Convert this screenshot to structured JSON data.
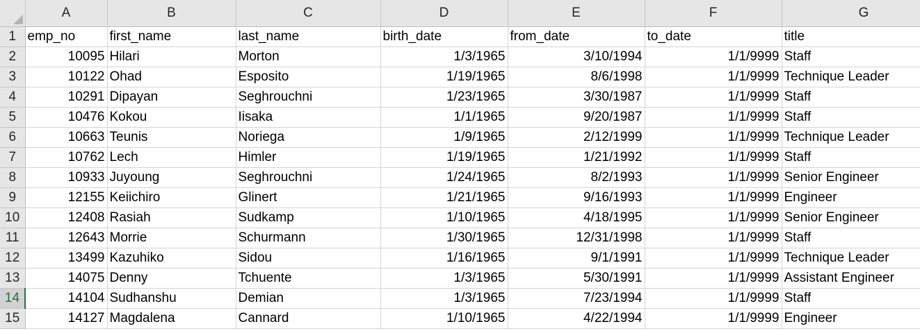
{
  "columns": [
    "A",
    "B",
    "C",
    "D",
    "E",
    "F",
    "G"
  ],
  "header_row": {
    "row_number": "1",
    "cells": [
      "emp_no",
      "first_name",
      "last_name",
      "birth_date",
      "from_date",
      "to_date",
      "title"
    ]
  },
  "rows": [
    {
      "row_number": "2",
      "emp_no": "10095",
      "first_name": "Hilari",
      "last_name": "Morton",
      "birth_date": "1/3/1965",
      "from_date": "3/10/1994",
      "to_date": "1/1/9999",
      "title": "Staff"
    },
    {
      "row_number": "3",
      "emp_no": "10122",
      "first_name": "Ohad",
      "last_name": "Esposito",
      "birth_date": "1/19/1965",
      "from_date": "8/6/1998",
      "to_date": "1/1/9999",
      "title": "Technique Leader"
    },
    {
      "row_number": "4",
      "emp_no": "10291",
      "first_name": "Dipayan",
      "last_name": "Seghrouchni",
      "birth_date": "1/23/1965",
      "from_date": "3/30/1987",
      "to_date": "1/1/9999",
      "title": "Staff"
    },
    {
      "row_number": "5",
      "emp_no": "10476",
      "first_name": "Kokou",
      "last_name": "Iisaka",
      "birth_date": "1/1/1965",
      "from_date": "9/20/1987",
      "to_date": "1/1/9999",
      "title": "Staff"
    },
    {
      "row_number": "6",
      "emp_no": "10663",
      "first_name": "Teunis",
      "last_name": "Noriega",
      "birth_date": "1/9/1965",
      "from_date": "2/12/1999",
      "to_date": "1/1/9999",
      "title": "Technique Leader"
    },
    {
      "row_number": "7",
      "emp_no": "10762",
      "first_name": "Lech",
      "last_name": "Himler",
      "birth_date": "1/19/1965",
      "from_date": "1/21/1992",
      "to_date": "1/1/9999",
      "title": "Staff"
    },
    {
      "row_number": "8",
      "emp_no": "10933",
      "first_name": "Juyoung",
      "last_name": "Seghrouchni",
      "birth_date": "1/24/1965",
      "from_date": "8/2/1993",
      "to_date": "1/1/9999",
      "title": "Senior Engineer"
    },
    {
      "row_number": "9",
      "emp_no": "12155",
      "first_name": "Keiichiro",
      "last_name": "Glinert",
      "birth_date": "1/21/1965",
      "from_date": "9/16/1993",
      "to_date": "1/1/9999",
      "title": "Engineer"
    },
    {
      "row_number": "10",
      "emp_no": "12408",
      "first_name": "Rasiah",
      "last_name": "Sudkamp",
      "birth_date": "1/10/1965",
      "from_date": "4/18/1995",
      "to_date": "1/1/9999",
      "title": "Senior Engineer"
    },
    {
      "row_number": "11",
      "emp_no": "12643",
      "first_name": "Morrie",
      "last_name": "Schurmann",
      "birth_date": "1/30/1965",
      "from_date": "12/31/1998",
      "to_date": "1/1/9999",
      "title": "Staff"
    },
    {
      "row_number": "12",
      "emp_no": "13499",
      "first_name": "Kazuhiko",
      "last_name": "Sidou",
      "birth_date": "1/16/1965",
      "from_date": "9/1/1991",
      "to_date": "1/1/9999",
      "title": "Technique Leader"
    },
    {
      "row_number": "13",
      "emp_no": "14075",
      "first_name": "Denny",
      "last_name": "Tchuente",
      "birth_date": "1/3/1965",
      "from_date": "5/30/1991",
      "to_date": "1/1/9999",
      "title": "Assistant Engineer"
    },
    {
      "row_number": "14",
      "emp_no": "14104",
      "first_name": "Sudhanshu",
      "last_name": "Demian",
      "birth_date": "1/3/1965",
      "from_date": "7/23/1994",
      "to_date": "1/1/9999",
      "title": "Staff"
    },
    {
      "row_number": "15",
      "emp_no": "14127",
      "first_name": "Magdalena",
      "last_name": "Cannard",
      "birth_date": "1/10/1965",
      "from_date": "4/22/1994",
      "to_date": "1/1/9999",
      "title": "Engineer"
    }
  ],
  "active_row": "14",
  "colors": {
    "header_bg": "#e6e6e6",
    "gridline": "#d4d4d4",
    "active_header_text": "#1f7145",
    "active_header_border": "#217346"
  }
}
